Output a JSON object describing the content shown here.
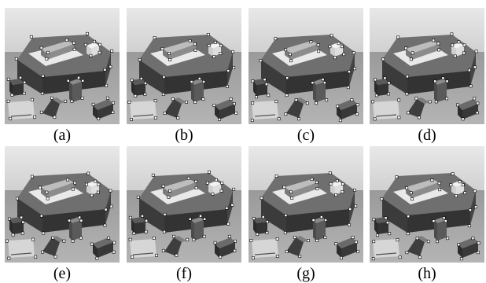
{
  "figure": {
    "panels": [
      {
        "label": "(a)"
      },
      {
        "label": "(b)"
      },
      {
        "label": "(c)"
      },
      {
        "label": "(d)"
      },
      {
        "label": "(e)"
      },
      {
        "label": "(f)"
      },
      {
        "label": "(g)"
      },
      {
        "label": "(h)"
      }
    ]
  },
  "colors": {
    "background_wall": "#d9d9d9",
    "table_surface": "#8f8f8f",
    "hexagon_side": "#3a3a3a",
    "hexagon_top": "#6b6b6b",
    "top_plate": "#e6e6e6",
    "blocks": "#4a4a4a",
    "corner_marker": "#ffffff"
  }
}
